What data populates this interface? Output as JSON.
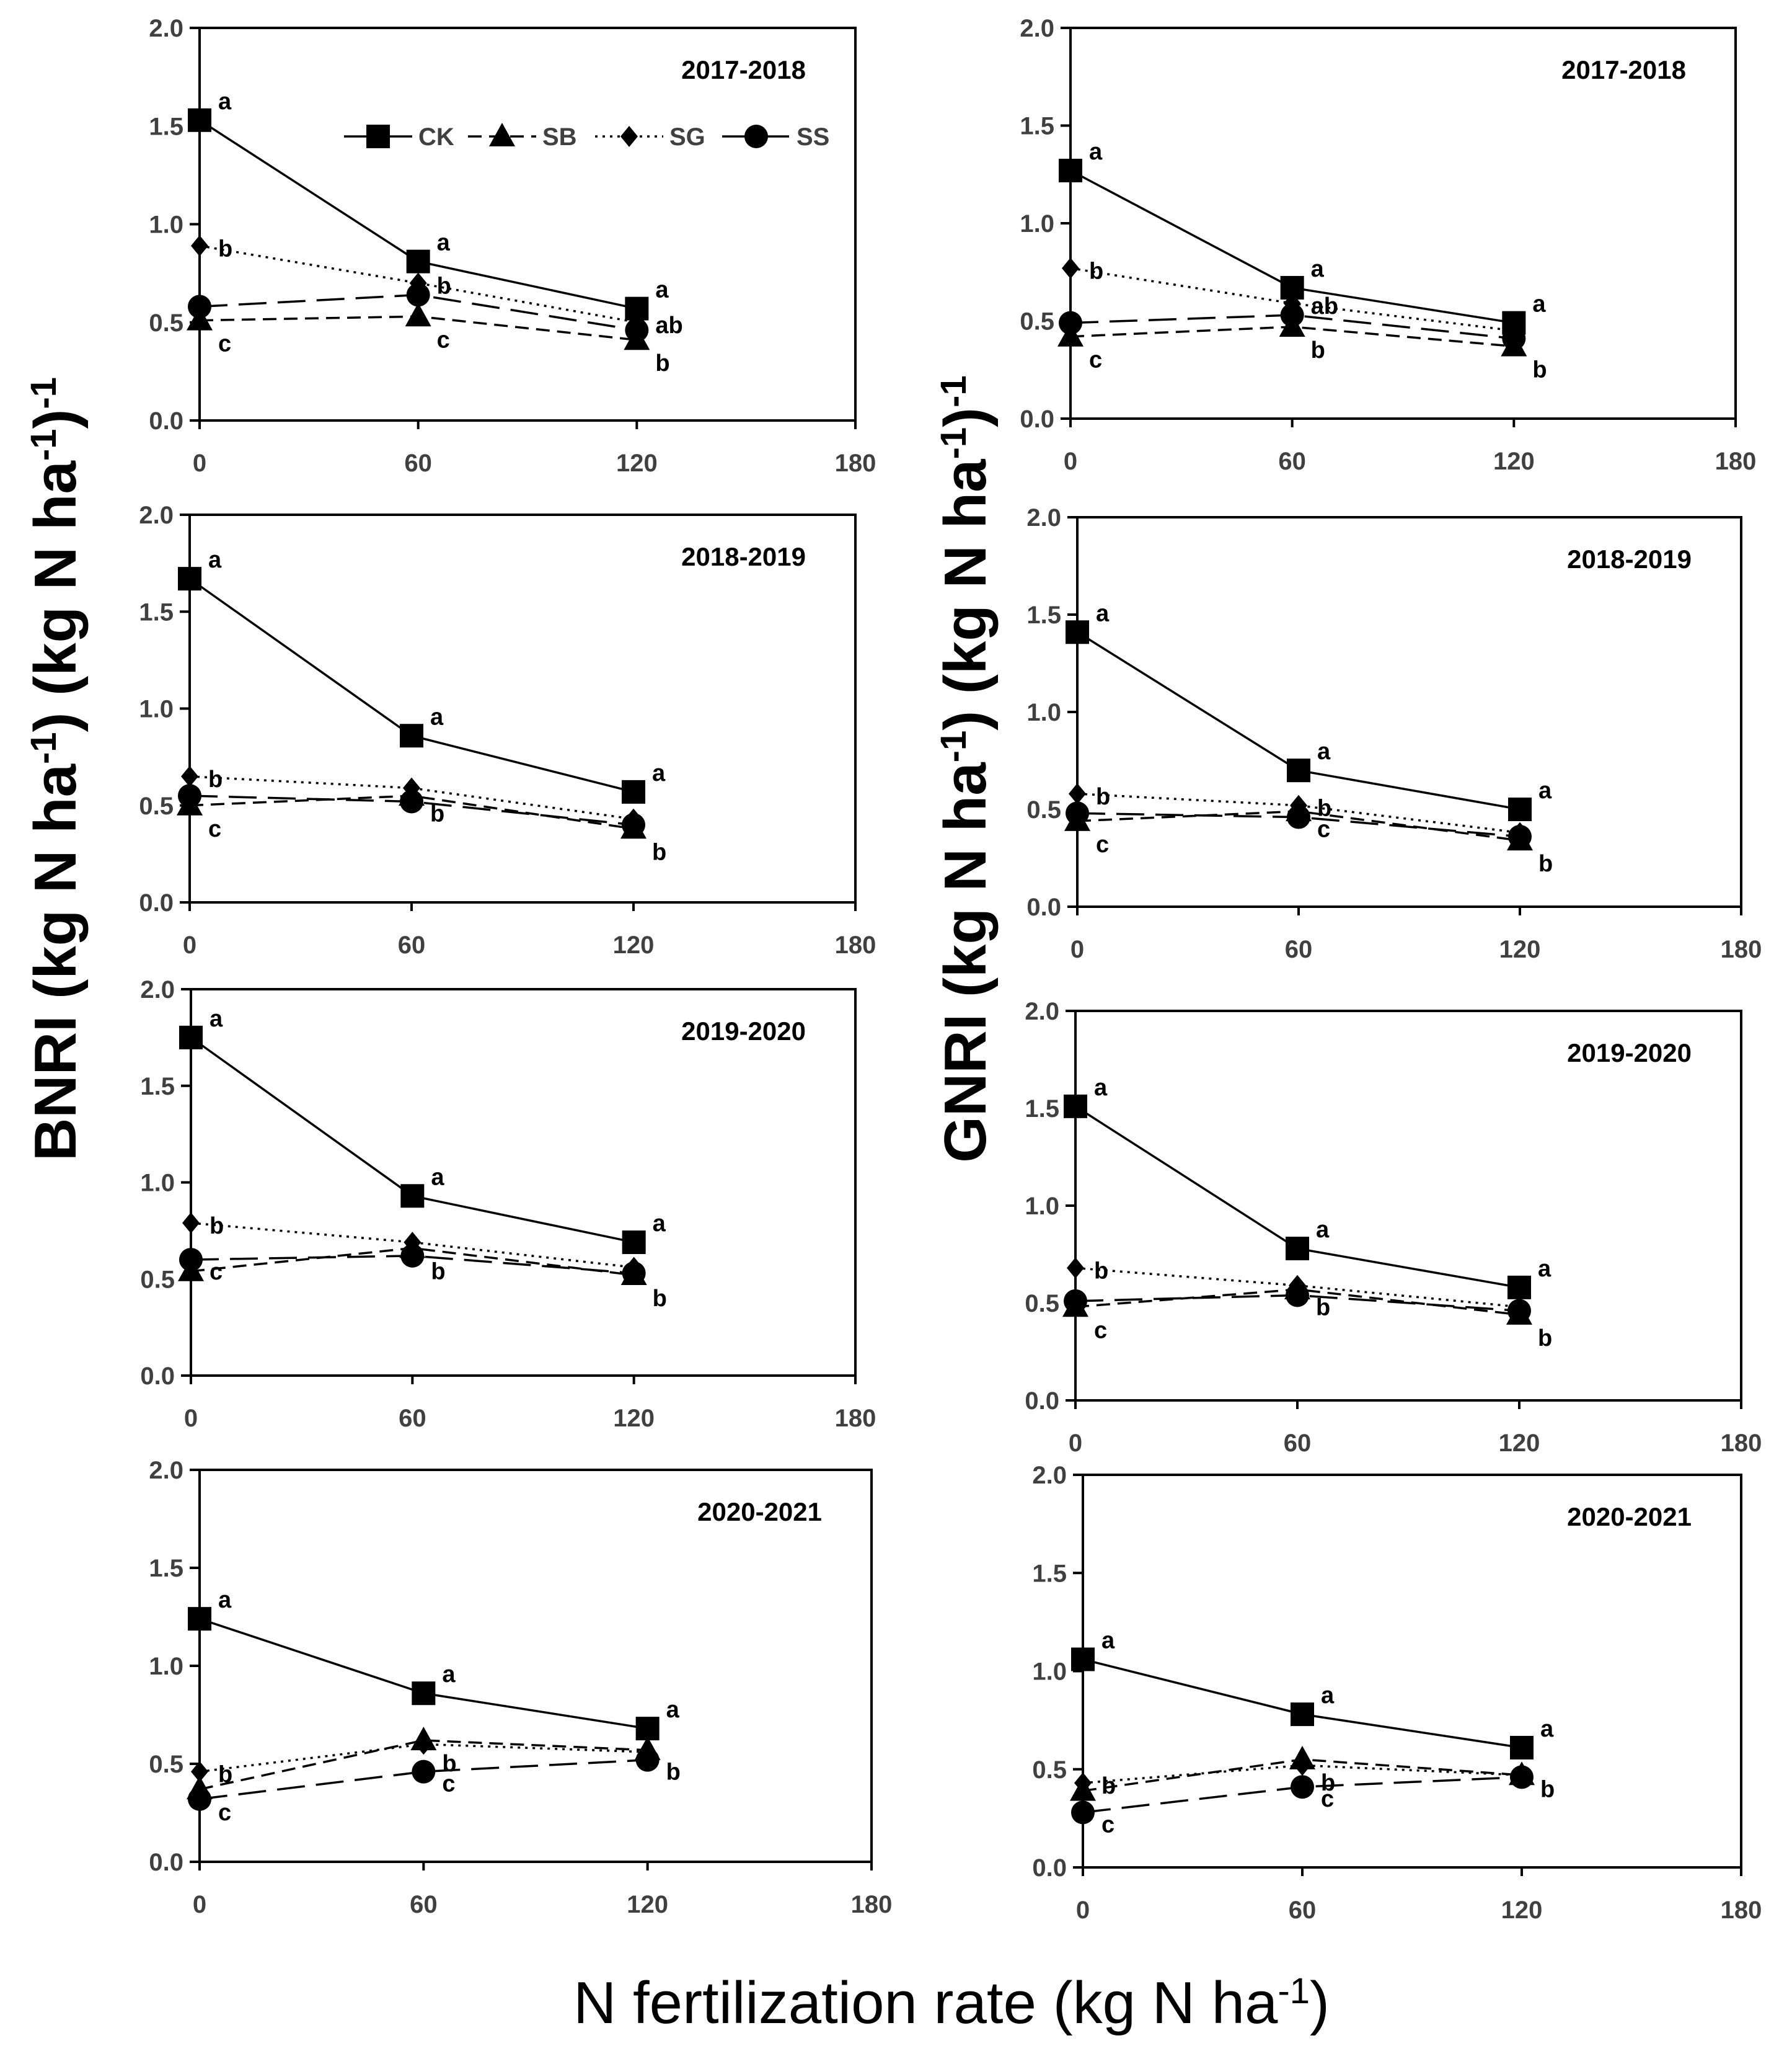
{
  "figure": {
    "ylabel_left": {
      "main": "BNRI (kg N ha",
      "sup": "-1",
      "mid": ") (kg N ha",
      "sup2": "-1",
      "end": ")",
      "sup3": "-1"
    },
    "ylabel_right": {
      "main": "GNRI (kg N ha",
      "sup": "-1",
      "mid": ") (kg N ha",
      "sup2": "-1",
      "end": ")",
      "sup3": "-1"
    },
    "xlabel": {
      "main": "N fertilization rate (kg N ha",
      "sup": "-1",
      "end": ")"
    },
    "legend": [
      {
        "name": "CK",
        "marker": "square",
        "dash": "solid"
      },
      {
        "name": "SB",
        "marker": "triangle",
        "dash": "short-dash"
      },
      {
        "name": "SG",
        "marker": "diamond",
        "dash": "dotted"
      },
      {
        "name": "SS",
        "marker": "circle",
        "dash": "long-dash"
      }
    ],
    "colors": {
      "line": "#000000",
      "background": "#ffffff"
    }
  },
  "chart_data": [
    {
      "type": "line",
      "panel": "BNRI",
      "title": "2017-2018",
      "x": [
        0,
        60,
        120
      ],
      "xlim": [
        0,
        180
      ],
      "xticks": [
        "0",
        "60",
        "120",
        "180"
      ],
      "ylim": [
        0,
        2
      ],
      "yticks": [
        "0.0",
        "0.5",
        "1.0",
        "1.5",
        "2.0"
      ],
      "grid": false,
      "legend_position": "top-right",
      "series": [
        {
          "name": "CK",
          "values": [
            1.53,
            0.81,
            0.57
          ],
          "letters": [
            "a",
            "a",
            "a"
          ]
        },
        {
          "name": "SB",
          "values": [
            0.51,
            0.53,
            0.41
          ],
          "letters": [
            "c",
            "c",
            "b"
          ]
        },
        {
          "name": "SG",
          "values": [
            0.89,
            0.7,
            0.5
          ],
          "letters": [
            "b",
            "b",
            "ab"
          ]
        },
        {
          "name": "SS",
          "values": [
            0.58,
            0.64,
            0.46
          ],
          "letters": [
            "",
            "",
            ""
          ]
        }
      ]
    },
    {
      "type": "line",
      "panel": "GNRI",
      "title": "2017-2018",
      "x": [
        0,
        60,
        120
      ],
      "xlim": [
        0,
        180
      ],
      "xticks": [
        "0",
        "60",
        "120",
        "180"
      ],
      "ylim": [
        0,
        2
      ],
      "yticks": [
        "0.0",
        "0.5",
        "1.0",
        "1.5",
        "2.0"
      ],
      "grid": false,
      "series": [
        {
          "name": "CK",
          "values": [
            1.27,
            0.67,
            0.49
          ],
          "letters": [
            "a",
            "a",
            "a"
          ]
        },
        {
          "name": "SB",
          "values": [
            0.42,
            0.47,
            0.37
          ],
          "letters": [
            "c",
            "b",
            "b"
          ]
        },
        {
          "name": "SG",
          "values": [
            0.77,
            0.59,
            0.45
          ],
          "letters": [
            "b",
            "ab",
            ""
          ]
        },
        {
          "name": "SS",
          "values": [
            0.49,
            0.53,
            0.41
          ],
          "letters": [
            "",
            "",
            ""
          ]
        }
      ]
    },
    {
      "type": "line",
      "panel": "BNRI",
      "title": "2018-2019",
      "x": [
        0,
        60,
        120
      ],
      "xlim": [
        0,
        180
      ],
      "xticks": [
        "0",
        "60",
        "120",
        "180"
      ],
      "ylim": [
        0,
        2
      ],
      "yticks": [
        "0.0",
        "0.5",
        "1.0",
        "1.5",
        "2.0"
      ],
      "grid": false,
      "series": [
        {
          "name": "CK",
          "values": [
            1.67,
            0.86,
            0.57
          ],
          "letters": [
            "a",
            "a",
            "a"
          ]
        },
        {
          "name": "SB",
          "values": [
            0.5,
            0.55,
            0.38
          ],
          "letters": [
            "c",
            "",
            "b"
          ]
        },
        {
          "name": "SG",
          "values": [
            0.65,
            0.59,
            0.43
          ],
          "letters": [
            "b",
            "",
            ""
          ]
        },
        {
          "name": "SS",
          "values": [
            0.55,
            0.52,
            0.4
          ],
          "letters": [
            "",
            "b",
            ""
          ]
        }
      ]
    },
    {
      "type": "line",
      "panel": "GNRI",
      "title": "2018-2019",
      "x": [
        0,
        60,
        120
      ],
      "xlim": [
        0,
        180
      ],
      "xticks": [
        "0",
        "60",
        "120",
        "180"
      ],
      "ylim": [
        0,
        2
      ],
      "yticks": [
        "0.0",
        "0.5",
        "1.0",
        "1.5",
        "2.0"
      ],
      "grid": false,
      "series": [
        {
          "name": "CK",
          "values": [
            1.41,
            0.7,
            0.5
          ],
          "letters": [
            "a",
            "a",
            "a"
          ]
        },
        {
          "name": "SB",
          "values": [
            0.44,
            0.49,
            0.34
          ],
          "letters": [
            "c",
            "",
            "b"
          ]
        },
        {
          "name": "SG",
          "values": [
            0.58,
            0.52,
            0.38
          ],
          "letters": [
            "b",
            "b",
            ""
          ]
        },
        {
          "name": "SS",
          "values": [
            0.48,
            0.46,
            0.36
          ],
          "letters": [
            "",
            "c",
            ""
          ]
        }
      ]
    },
    {
      "type": "line",
      "panel": "BNRI",
      "title": "2019-2020",
      "x": [
        0,
        60,
        120
      ],
      "xlim": [
        0,
        180
      ],
      "xticks": [
        "0",
        "60",
        "120",
        "180"
      ],
      "ylim": [
        0,
        2
      ],
      "yticks": [
        "0.0",
        "0.5",
        "1.0",
        "1.5",
        "2.0"
      ],
      "grid": false,
      "series": [
        {
          "name": "CK",
          "values": [
            1.75,
            0.93,
            0.69
          ],
          "letters": [
            "a",
            "a",
            "a"
          ]
        },
        {
          "name": "SB",
          "values": [
            0.54,
            0.66,
            0.52
          ],
          "letters": [
            "",
            "b",
            "b"
          ]
        },
        {
          "name": "SG",
          "values": [
            0.79,
            0.69,
            0.56
          ],
          "letters": [
            "b",
            "",
            ""
          ]
        },
        {
          "name": "SS",
          "values": [
            0.6,
            0.62,
            0.53
          ],
          "letters": [
            "c",
            "",
            ""
          ]
        }
      ]
    },
    {
      "type": "line",
      "panel": "GNRI",
      "title": "2019-2020",
      "x": [
        0,
        60,
        120
      ],
      "xlim": [
        0,
        180
      ],
      "xticks": [
        "0",
        "60",
        "120",
        "180"
      ],
      "ylim": [
        0,
        2
      ],
      "yticks": [
        "0.0",
        "0.5",
        "1.0",
        "1.5",
        "2.0"
      ],
      "grid": false,
      "series": [
        {
          "name": "CK",
          "values": [
            1.51,
            0.78,
            0.58
          ],
          "letters": [
            "a",
            "a",
            "a"
          ]
        },
        {
          "name": "SB",
          "values": [
            0.48,
            0.57,
            0.44
          ],
          "letters": [
            "c",
            "",
            "b"
          ]
        },
        {
          "name": "SG",
          "values": [
            0.68,
            0.59,
            0.48
          ],
          "letters": [
            "b",
            "",
            ""
          ]
        },
        {
          "name": "SS",
          "values": [
            0.51,
            0.54,
            0.46
          ],
          "letters": [
            "",
            "b",
            ""
          ]
        }
      ]
    },
    {
      "type": "line",
      "panel": "BNRI",
      "title": "2020-2021",
      "x": [
        0,
        60,
        120
      ],
      "xlim": [
        0,
        180
      ],
      "xticks": [
        "0",
        "60",
        "120",
        "180"
      ],
      "ylim": [
        0,
        2
      ],
      "yticks": [
        "0.0",
        "0.5",
        "1.0",
        "1.5",
        "2.0"
      ],
      "grid": false,
      "series": [
        {
          "name": "CK",
          "values": [
            1.24,
            0.86,
            0.68
          ],
          "letters": [
            "a",
            "a",
            "a"
          ]
        },
        {
          "name": "SB",
          "values": [
            0.37,
            0.62,
            0.57
          ],
          "letters": [
            "c",
            "b",
            ""
          ]
        },
        {
          "name": "SG",
          "values": [
            0.46,
            0.6,
            0.56
          ],
          "letters": [
            "b",
            "",
            ""
          ]
        },
        {
          "name": "SS",
          "values": [
            0.32,
            0.46,
            0.52
          ],
          "letters": [
            "",
            "c",
            "b"
          ]
        }
      ]
    },
    {
      "type": "line",
      "panel": "GNRI",
      "title": "2020-2021",
      "x": [
        0,
        60,
        120
      ],
      "xlim": [
        0,
        180
      ],
      "xticks": [
        "0",
        "60",
        "120",
        "180"
      ],
      "ylim": [
        0,
        2
      ],
      "yticks": [
        "0.0",
        "0.5",
        "1.0",
        "1.5",
        "2.0"
      ],
      "grid": false,
      "series": [
        {
          "name": "CK",
          "values": [
            1.06,
            0.78,
            0.61
          ],
          "letters": [
            "a",
            "a",
            "a"
          ]
        },
        {
          "name": "SB",
          "values": [
            0.39,
            0.55,
            0.47
          ],
          "letters": [
            "",
            "b",
            ""
          ]
        },
        {
          "name": "SG",
          "values": [
            0.43,
            0.52,
            0.47
          ],
          "letters": [
            "b",
            "",
            ""
          ]
        },
        {
          "name": "SS",
          "values": [
            0.28,
            0.41,
            0.46
          ],
          "letters": [
            "c",
            "c",
            "b"
          ]
        }
      ]
    }
  ]
}
